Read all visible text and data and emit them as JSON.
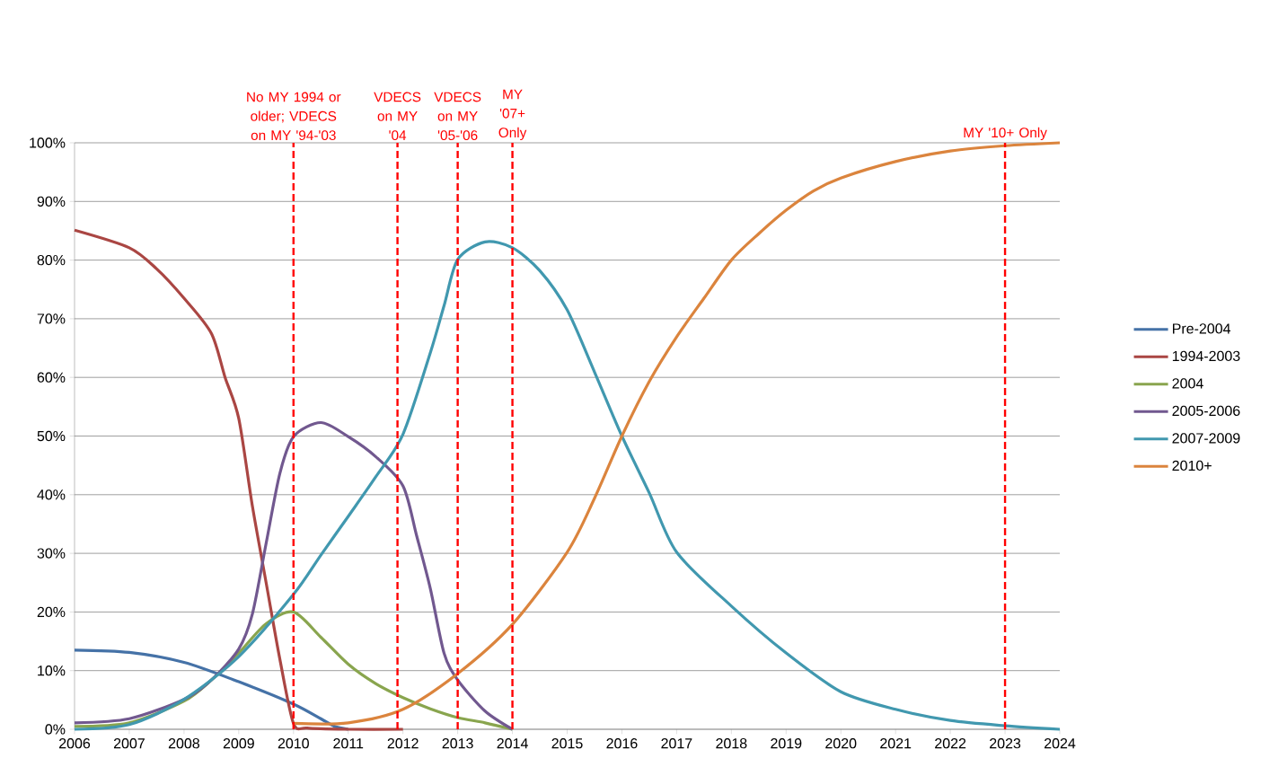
{
  "chart_data": {
    "type": "line",
    "xlim": [
      2006,
      2024
    ],
    "ylim": [
      0,
      100
    ],
    "xticks": [
      2006,
      2007,
      2008,
      2009,
      2010,
      2011,
      2012,
      2013,
      2014,
      2015,
      2016,
      2017,
      2018,
      2019,
      2020,
      2021,
      2022,
      2023,
      2024
    ],
    "yticks": [
      {
        "value": 0,
        "label": "0%"
      },
      {
        "value": 10,
        "label": "10%"
      },
      {
        "value": 20,
        "label": "20%"
      },
      {
        "value": 30,
        "label": "30%"
      },
      {
        "value": 40,
        "label": "40%"
      },
      {
        "value": 50,
        "label": "50%"
      },
      {
        "value": 60,
        "label": "60%"
      },
      {
        "value": 70,
        "label": "70%"
      },
      {
        "value": 80,
        "label": "80%"
      },
      {
        "value": 90,
        "label": "90%"
      },
      {
        "value": 100,
        "label": "100%"
      }
    ],
    "grid": "y",
    "legend": "right",
    "marker": "none",
    "line_style": "solid",
    "series": [
      {
        "name": "Pre-2004",
        "color": "#4572a7",
        "x": [
          2006,
          2007,
          2008,
          2009,
          2010,
          2010.5,
          2010.75,
          2011
        ],
        "values": [
          13.5,
          13.1,
          11.4,
          8.1,
          4.3,
          1.8,
          0.5,
          0
        ]
      },
      {
        "name": "1994-2003",
        "color": "#aa4643",
        "x": [
          2006,
          2007,
          2007.5,
          2008,
          2008.5,
          2008.75,
          2009,
          2009.25,
          2009.5,
          2009.75,
          2010,
          2010.25,
          2011,
          2012
        ],
        "values": [
          85.1,
          82.1,
          78.5,
          73.5,
          67.5,
          60,
          53,
          38,
          25,
          12,
          1,
          0.2,
          0,
          0
        ]
      },
      {
        "name": "2004",
        "color": "#89a54e",
        "x": [
          2006,
          2007,
          2008,
          2008.5,
          2009,
          2009.5,
          2010,
          2010.5,
          2011,
          2011.5,
          2012,
          2012.5,
          2013,
          2013.5,
          2014
        ],
        "values": [
          0.5,
          1.1,
          4.8,
          8.4,
          13,
          18,
          20,
          15.7,
          11.1,
          7.8,
          5.4,
          3.5,
          2,
          1.1,
          0
        ]
      },
      {
        "name": "2005-2006",
        "color": "#71588f",
        "x": [
          2006,
          2007,
          2008,
          2008.5,
          2009,
          2009.25,
          2009.5,
          2009.75,
          2010,
          2010.5,
          2011,
          2011.5,
          2012,
          2012.25,
          2012.5,
          2012.75,
          2013,
          2013.5,
          2014
        ],
        "values": [
          1.1,
          1.8,
          5.1,
          8.4,
          13.7,
          19.7,
          31.7,
          43.6,
          49.9,
          52.3,
          49.9,
          46.5,
          41.5,
          33,
          24,
          13,
          8.4,
          3.1,
          0
        ]
      },
      {
        "name": "2007-2009",
        "color": "#4198af",
        "x": [
          2006,
          2007,
          2008,
          2009,
          2010,
          2010.5,
          2011,
          2011.5,
          2012,
          2012.5,
          2012.75,
          2013,
          2013.5,
          2014,
          2014.5,
          2015,
          2015.5,
          2016,
          2016.5,
          2017,
          2018,
          2019,
          2020,
          2021,
          2022,
          2023,
          2024
        ],
        "values": [
          0,
          0.8,
          5.1,
          12.4,
          23,
          29.7,
          36.3,
          43,
          50.3,
          64.2,
          72.2,
          80.1,
          83.1,
          82.1,
          78.2,
          71.5,
          60.9,
          50,
          40.3,
          30.2,
          21,
          13,
          6.4,
          3.4,
          1.5,
          0.6,
          0
        ]
      },
      {
        "name": "2010+",
        "color": "#db843d",
        "x": [
          2010,
          2011,
          2012,
          2013,
          2014,
          2015,
          2015.5,
          2016,
          2016.5,
          2017,
          2017.5,
          2018,
          2018.5,
          2019,
          2019.5,
          2020,
          2021,
          2022,
          2023,
          2024
        ],
        "values": [
          1,
          1.1,
          3.4,
          9.5,
          17.9,
          30.2,
          39.4,
          50,
          59.3,
          66.9,
          73.5,
          80,
          84.5,
          88.5,
          91.8,
          94,
          96.8,
          98.6,
          99.5,
          100
        ]
      }
    ],
    "ref_lines": [
      {
        "axis": "x",
        "value": 2010,
        "label": "No MY 1994 or older; VDECS on MY '94-'03",
        "color": "#ff0000",
        "line_style": "dashed"
      },
      {
        "axis": "x",
        "value": 2011.9,
        "label": "VDECS on MY '04",
        "color": "#ff0000",
        "line_style": "dashed"
      },
      {
        "axis": "x",
        "value": 2013,
        "label": "VDECS on MY '05-'06",
        "color": "#ff0000",
        "line_style": "dashed"
      },
      {
        "axis": "x",
        "value": 2014,
        "label": "MY '07+ Only",
        "color": "#ff0000",
        "line_style": "dashed"
      },
      {
        "axis": "x",
        "value": 2023,
        "label": "MY '10+ Only",
        "color": "#ff0000",
        "line_style": "dashed"
      }
    ]
  }
}
